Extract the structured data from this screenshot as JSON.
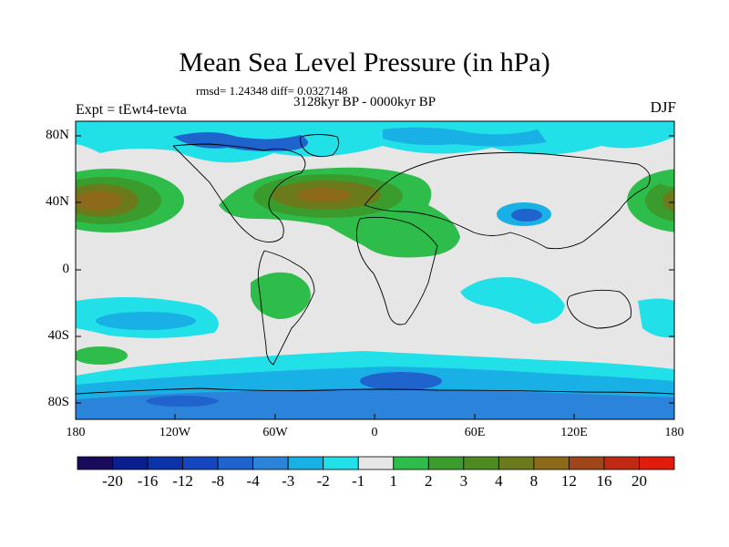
{
  "title": "Mean Sea Level Pressure (in hPa)",
  "stats_line": "rmsd= 1.24348 diff= 0.0327148",
  "subtitle": "3128kyr BP - 0000kyr BP",
  "experiment": "Expt = tEwt4-tevta",
  "season": "DJF",
  "lat_ticks": [
    "80N",
    "40N",
    "0",
    "40S",
    "80S"
  ],
  "lon_ticks": [
    "180",
    "120W",
    "60W",
    "0",
    "60E",
    "120E",
    "180"
  ],
  "colorbar": {
    "labels": [
      "-20",
      "-16",
      "-12",
      "-8",
      "-4",
      "-3",
      "-2",
      "-1",
      "1",
      "2",
      "3",
      "4",
      "8",
      "12",
      "16",
      "20"
    ],
    "colors": [
      "#1a0a5c",
      "#0a1f8f",
      "#0c33a8",
      "#1447bf",
      "#1f63cc",
      "#2b84d9",
      "#19b0e6",
      "#22e0e8",
      "#e6e6e6",
      "#2ebd4a",
      "#3b9c2e",
      "#4d8a20",
      "#6b7a1a",
      "#8c6a1a",
      "#a0461a",
      "#c02a14",
      "#e01c0c"
    ]
  },
  "colors": {
    "background": "#e6e6e6",
    "ocean_blue_light": "#22e0e8",
    "ocean_blue_mid": "#19b0e6",
    "ocean_blue_dark": "#1f63cc",
    "green": "#2ebd4a",
    "olive": "#6b7a1a",
    "brown": "#8c6a1a"
  }
}
